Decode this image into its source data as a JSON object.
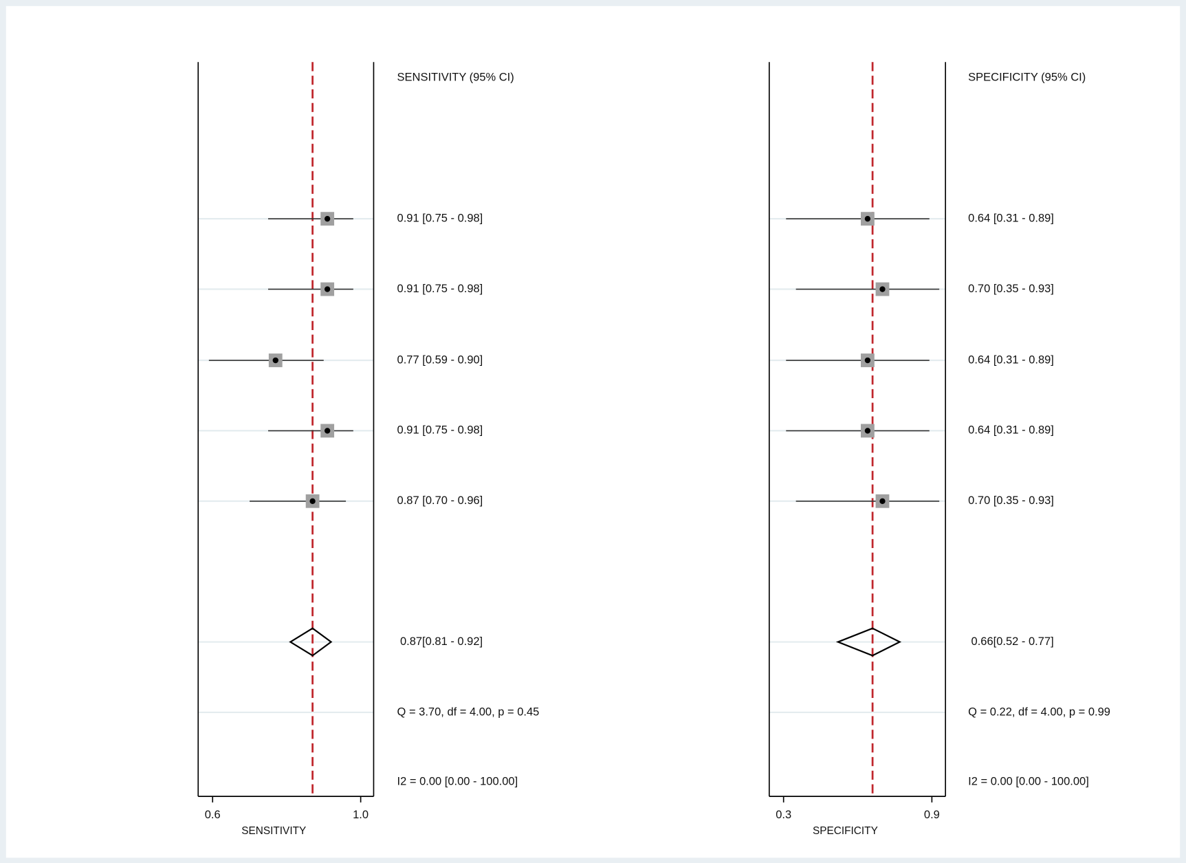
{
  "chart_data": [
    {
      "type": "forest",
      "header": "SENSITIVITY (95% CI)",
      "xlabel": "SENSITIVITY",
      "xlim": [
        0.561,
        1.035
      ],
      "xticks": [
        0.6,
        {
          "value": 1,
          "label": "1.0"
        }
      ],
      "values": [
        0.91,
        0.91,
        0.77,
        0.91,
        0.87
      ],
      "lower": [
        0.75,
        0.75,
        0.59,
        0.75,
        0.7
      ],
      "upper": [
        0.98,
        0.98,
        0.9,
        0.98,
        0.96
      ],
      "value_labels": [
        "0.91 [0.75 - 0.98]",
        "0.91 [0.75 - 0.98]",
        "0.77 [0.59 - 0.90]",
        "0.91 [0.75 - 0.98]",
        "0.87 [0.70 - 0.96]"
      ],
      "summary": {
        "value": 0.87,
        "lower": 0.81,
        "upper": 0.92,
        "label": "0.87[0.81 - 0.92]"
      },
      "heterogeneity": "Q =  3.70, df = 4.00, p =  0.45",
      "inconsistency": "I2 = 0.00 [0.00 - 100.00]",
      "marker_color": "#a0a0a0",
      "reference_line_color": "#c0272d"
    },
    {
      "type": "forest",
      "header": "SPECIFICITY (95% CI)",
      "xlabel": "SPECIFICITY",
      "xlim": [
        0.242,
        0.955
      ],
      "xticks": [
        0.3,
        0.9
      ],
      "values": [
        0.64,
        0.7,
        0.64,
        0.64,
        0.7
      ],
      "lower": [
        0.31,
        0.35,
        0.31,
        0.31,
        0.35
      ],
      "upper": [
        0.89,
        0.93,
        0.89,
        0.89,
        0.93
      ],
      "value_labels": [
        "0.64 [0.31 - 0.89]",
        "0.70 [0.35 - 0.93]",
        "0.64 [0.31 - 0.89]",
        "0.64 [0.31 - 0.89]",
        "0.70 [0.35 - 0.93]"
      ],
      "summary": {
        "value": 0.66,
        "lower": 0.52,
        "upper": 0.77,
        "label": "0.66[0.52 - 0.77]"
      },
      "heterogeneity": "Q =  0.22, df = 4.00, p =  0.99",
      "inconsistency": "I2 = 0.00 [0.00 - 100.00]",
      "marker_color": "#a0a0a0",
      "reference_line_color": "#c0272d"
    }
  ]
}
